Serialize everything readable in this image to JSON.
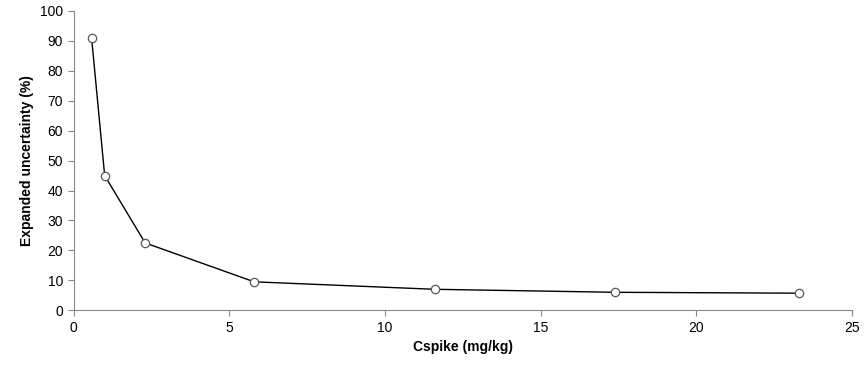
{
  "chart_data": {
    "type": "line",
    "x_label": "Cspike (mg/kg)",
    "y_label": "Expanded uncertainty (%)",
    "x": [
      0.58,
      1.0,
      2.3,
      5.8,
      11.6,
      17.4,
      23.3
    ],
    "values": [
      91,
      45,
      22.5,
      9.5,
      7,
      6,
      5.7
    ],
    "color": "#000000",
    "marker": "o",
    "line_style": "solid",
    "xlim": [
      0,
      25
    ],
    "xticks": [
      0,
      5,
      10,
      15,
      20,
      25
    ],
    "ylim": [
      0,
      100
    ],
    "yticks": [
      0,
      10,
      20,
      30,
      40,
      50,
      60,
      70,
      80,
      90,
      100
    ],
    "grid": false
  }
}
